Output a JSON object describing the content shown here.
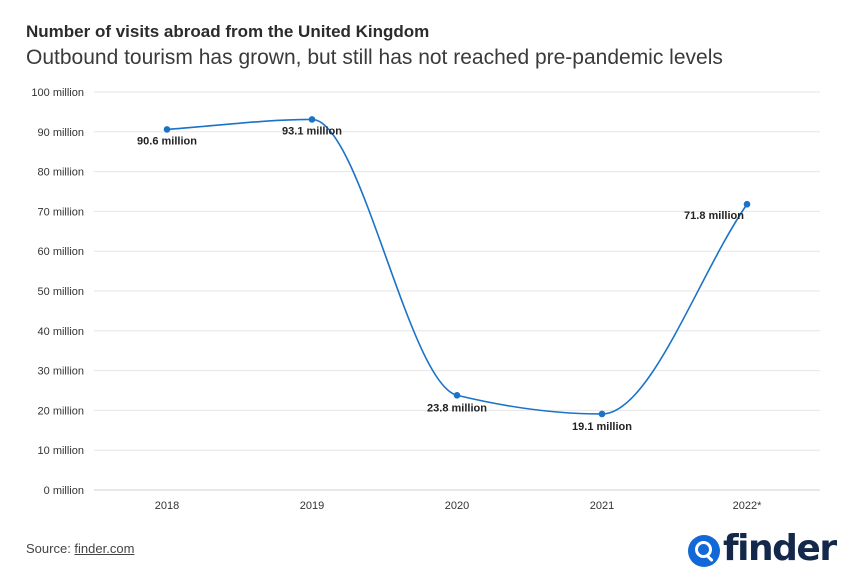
{
  "header": {
    "title": "Number of visits abroad from the United Kingdom",
    "subtitle": "Outbound tourism has grown, but still has not reached pre-pandemic levels"
  },
  "footer": {
    "source_label": "Source: ",
    "source_link": "finder.com",
    "logo_text": "finder"
  },
  "colors": {
    "line": "#1a73c8",
    "point": "#1a73c8",
    "grid": "#e6e6e6",
    "label": "#222222",
    "axis_text": "#333333",
    "logo_blue": "#1268d6",
    "logo_text": "#13284a"
  },
  "chart_data": {
    "type": "line",
    "title": "Number of visits abroad from the United Kingdom",
    "subtitle": "Outbound tourism has grown, but still has not reached pre-pandemic levels",
    "categories": [
      "2018",
      "2019",
      "2020",
      "2021",
      "2022*"
    ],
    "series": [
      {
        "values": [
          90.6,
          93.1,
          23.8,
          19.1,
          71.8
        ],
        "data_labels": [
          "90.6 million",
          "93.1 million",
          "23.8 million",
          "19.1 million",
          "71.8 million"
        ]
      }
    ],
    "y_ticks": [
      0,
      10,
      20,
      30,
      40,
      50,
      60,
      70,
      80,
      90,
      100
    ],
    "y_tick_labels": [
      "0 million",
      "10 million",
      "20 million",
      "30 million",
      "40 million",
      "50 million",
      "60 million",
      "70 million",
      "80 million",
      "90 million",
      "100 million"
    ],
    "ylim": [
      0,
      100
    ],
    "xlabel": "",
    "ylabel": "",
    "grid": true,
    "legend": false,
    "smooth": true
  }
}
